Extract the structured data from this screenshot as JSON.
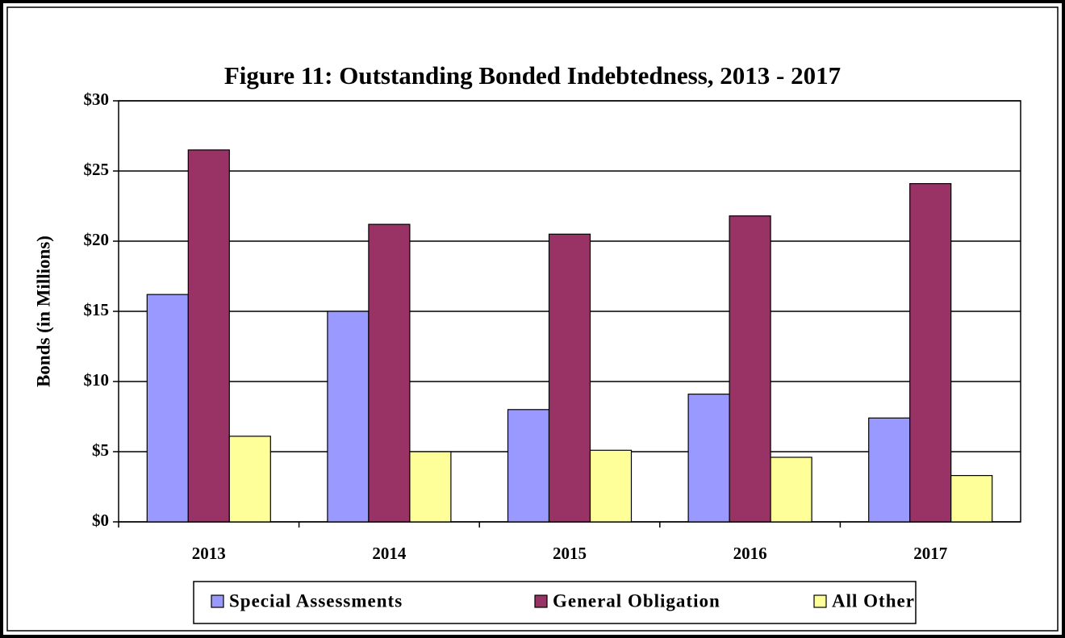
{
  "chart_data": {
    "type": "bar",
    "title": "Figure 11:  Outstanding Bonded Indebtedness, 2013 - 2017",
    "y_label": "Bonds (in Millions)",
    "categories": [
      "2013",
      "2014",
      "2015",
      "2016",
      "2017"
    ],
    "series": [
      {
        "name": "Special Assessments",
        "color": "#9999ff",
        "values": [
          16.2,
          15.0,
          8.0,
          9.1,
          7.4
        ]
      },
      {
        "name": "General Obligation",
        "color": "#993366",
        "values": [
          26.5,
          21.2,
          20.5,
          21.8,
          24.1
        ]
      },
      {
        "name": "All Other",
        "color": "#ffff99",
        "values": [
          6.1,
          5.0,
          5.1,
          4.6,
          3.3
        ]
      }
    ],
    "ylim": [
      0,
      30
    ],
    "yticks": [
      {
        "value": 0,
        "label": "$0"
      },
      {
        "value": 5,
        "label": "$5"
      },
      {
        "value": 10,
        "label": "$10"
      },
      {
        "value": 15,
        "label": "$15"
      },
      {
        "value": 20,
        "label": "$20"
      },
      {
        "value": 25,
        "label": "$25"
      },
      {
        "value": 30,
        "label": "$30"
      }
    ],
    "grid": true,
    "legend": "bottom"
  }
}
